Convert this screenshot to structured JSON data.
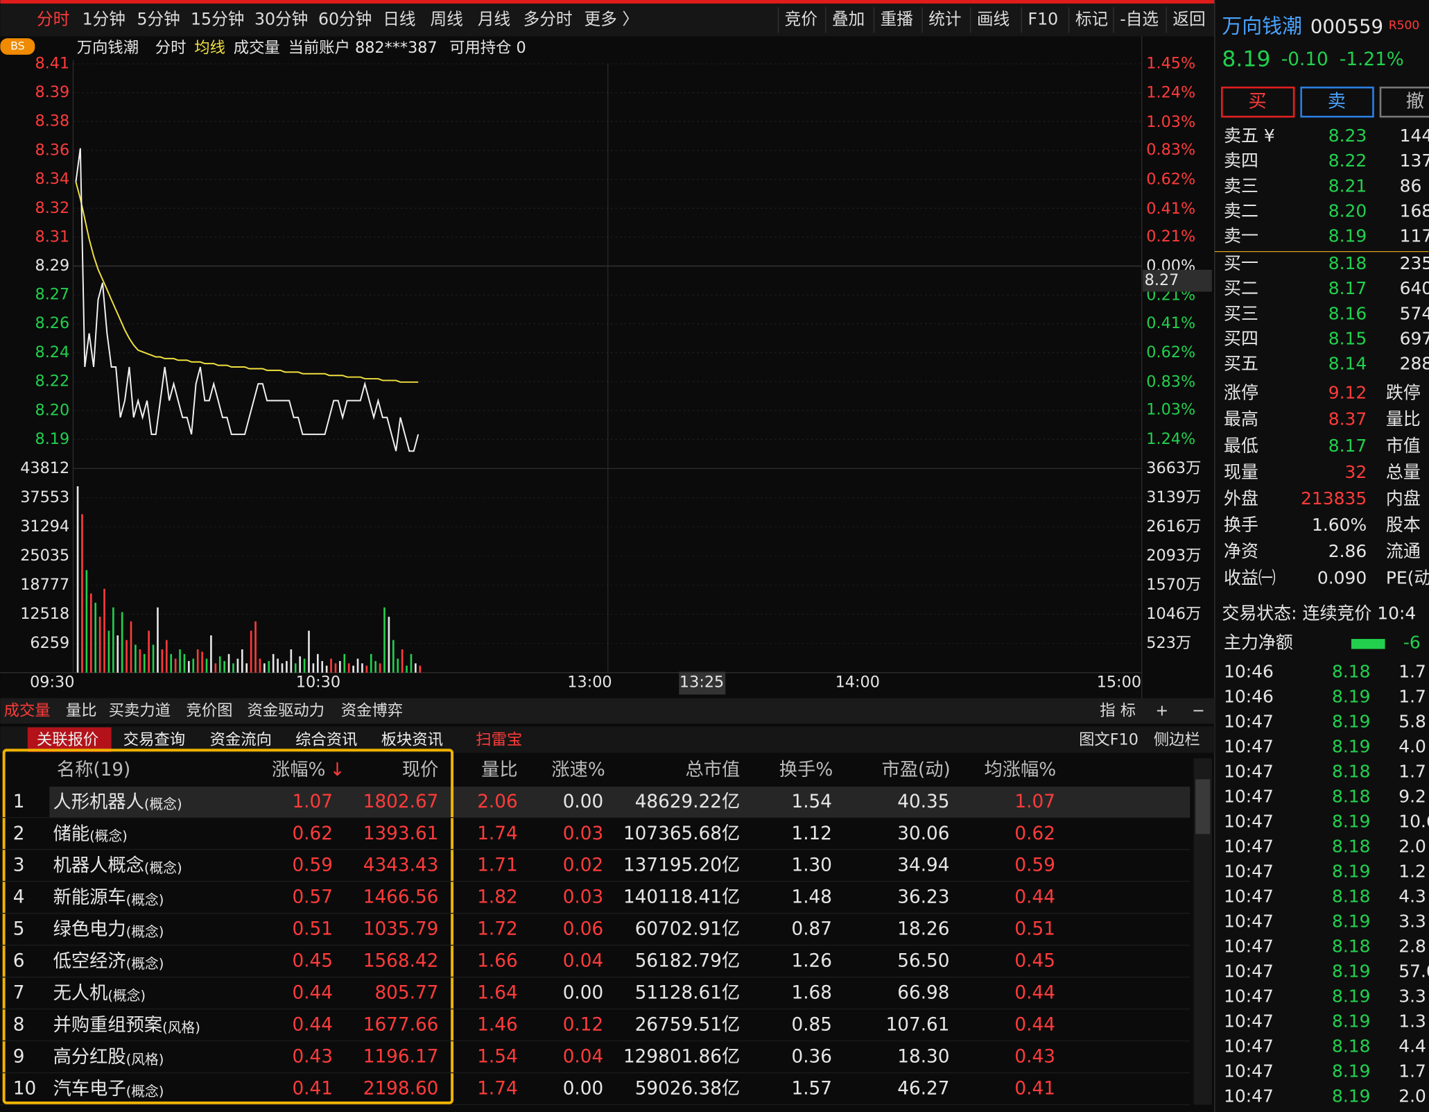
{
  "toolbar": {
    "left": [
      "分时",
      "1分钟",
      "5分钟",
      "15分钟",
      "30分钟",
      "60分钟",
      "日线",
      "周线",
      "月线",
      "多分时",
      "更多 〉"
    ],
    "right": [
      "竞价",
      "叠加",
      "重播",
      "统计",
      "画线",
      "F10",
      "标记",
      "-自选",
      "返回"
    ]
  },
  "chart_info": {
    "badge": "BS",
    "stock": "万向钱潮",
    "mode": "分时",
    "average": "均线",
    "volume": "成交量",
    "account": "当前账户 882***387",
    "holding": "可用持仓 0"
  },
  "intraday": {
    "price_ticks": [
      {
        "value": 8.4102,
        "label": "8.41"
      },
      {
        "value": 8.393,
        "label": "8.39"
      },
      {
        "value": 8.3759,
        "label": "8.38"
      },
      {
        "value": 8.3587,
        "label": "8.36"
      },
      {
        "value": 8.3415,
        "label": "8.34"
      },
      {
        "value": 8.3243,
        "label": "8.32"
      },
      {
        "value": 8.3072,
        "label": "8.31"
      },
      {
        "value": 8.29,
        "label": "8.29"
      },
      {
        "value": 8.2728,
        "label": "8.27"
      },
      {
        "value": 8.2557,
        "label": "8.26"
      },
      {
        "value": 8.2385,
        "label": "8.24"
      },
      {
        "value": 8.2213,
        "label": "8.22"
      },
      {
        "value": 8.2041,
        "label": "8.20"
      },
      {
        "value": 8.187,
        "label": "8.19"
      }
    ],
    "ylim": [
      8.187,
      8.4102
    ],
    "pct_ticks": [
      {
        "value": 1.45,
        "label": "1.45%"
      },
      {
        "value": 1.24,
        "label": "1.24%"
      },
      {
        "value": 1.03,
        "label": "1.03%"
      },
      {
        "value": 0.83,
        "label": "0.83%"
      },
      {
        "value": 0.62,
        "label": "0.62%"
      },
      {
        "value": 0.41,
        "label": "0.41%"
      },
      {
        "value": 0.21,
        "label": "0.21%"
      },
      {
        "value": 0,
        "label": "0.00%"
      },
      {
        "value": -0.21,
        "label": "0.21%"
      },
      {
        "value": -0.41,
        "label": "0.41%"
      },
      {
        "value": -0.62,
        "label": "0.62%"
      },
      {
        "value": -0.83,
        "label": "0.83%"
      },
      {
        "value": -1.03,
        "label": "1.03%"
      },
      {
        "value": -1.24,
        "label": "1.24%"
      }
    ],
    "y2lim": [
      -1.24,
      1.45
    ],
    "price": [
      8.34,
      8.36,
      8.23,
      8.25,
      8.23,
      8.27,
      8.28,
      8.25,
      8.23,
      8.23,
      8.2,
      8.21,
      8.23,
      8.2,
      8.21,
      8.2,
      8.21,
      8.19,
      8.19,
      8.21,
      8.23,
      8.21,
      8.22,
      8.21,
      8.2,
      8.2,
      8.19,
      8.22,
      8.23,
      8.21,
      8.21,
      8.22,
      8.21,
      8.2,
      8.2,
      8.19,
      8.19,
      8.19,
      8.19,
      8.2,
      8.21,
      8.22,
      8.22,
      8.21,
      8.21,
      8.21,
      8.21,
      8.21,
      8.21,
      8.2,
      8.2,
      8.19,
      8.19,
      8.19,
      8.19,
      8.19,
      8.19,
      8.2,
      8.21,
      8.21,
      8.2,
      8.21,
      8.21,
      8.21,
      8.21,
      8.22,
      8.21,
      8.2,
      8.21,
      8.2,
      8.2,
      8.19,
      8.18,
      8.2,
      8.19,
      8.18,
      8.18,
      8.19
    ],
    "average": [
      8.34,
      8.33,
      8.318,
      8.306,
      8.296,
      8.288,
      8.282,
      8.276,
      8.27,
      8.264,
      8.258,
      8.252,
      8.247,
      8.243,
      8.24,
      8.239,
      8.238,
      8.237,
      8.236,
      8.236,
      8.235,
      8.235,
      8.235,
      8.234,
      8.234,
      8.234,
      8.233,
      8.233,
      8.233,
      8.232,
      8.232,
      8.232,
      8.231,
      8.231,
      8.231,
      8.23,
      8.23,
      8.23,
      8.23,
      8.229,
      8.229,
      8.229,
      8.229,
      8.228,
      8.228,
      8.228,
      8.228,
      8.227,
      8.227,
      8.227,
      8.227,
      8.226,
      8.226,
      8.226,
      8.226,
      8.226,
      8.226,
      8.225,
      8.225,
      8.225,
      8.225,
      8.224,
      8.224,
      8.224,
      8.224,
      8.223,
      8.223,
      8.223,
      8.223,
      8.222,
      8.222,
      8.222,
      8.222,
      8.221,
      8.221,
      8.221,
      8.221,
      8.221
    ],
    "volume": [
      40000,
      34000,
      22000,
      17000,
      15000,
      12000,
      18000,
      9000,
      14000,
      8000,
      13000,
      7000,
      11000,
      6000,
      5000,
      4000,
      9000,
      6000,
      14000,
      5000,
      7000,
      4000,
      3000,
      5000,
      4000,
      2500,
      3000,
      5000,
      4500,
      3000,
      8000,
      2000,
      3500,
      2500,
      4000,
      2000,
      3000,
      5000,
      2000,
      9000,
      11000,
      3000,
      2000,
      2500,
      4000,
      3000,
      2000,
      2500,
      5000,
      2000,
      3500,
      3000,
      9000,
      2000,
      4000,
      2500,
      1500,
      3000,
      2000,
      2500,
      4000,
      2000,
      1500,
      3000,
      2000,
      1500,
      4000,
      2500,
      2000,
      14000,
      12000,
      7000,
      3000,
      5000,
      1500,
      4000,
      2000,
      1500
    ],
    "vlim": [
      0,
      43812
    ],
    "volume_ticks": [
      43812,
      37553,
      31294,
      25035,
      18777,
      12518,
      6259
    ],
    "amount_ticks": [
      {
        "value": 3663,
        "label": "3663万"
      },
      {
        "value": 3139,
        "label": "3139万"
      },
      {
        "value": 2616,
        "label": "2616万"
      },
      {
        "value": 2093,
        "label": "2093万"
      },
      {
        "value": 1570,
        "label": "1570万"
      },
      {
        "value": 1046,
        "label": "1046万"
      },
      {
        "value": 523,
        "label": "523万"
      }
    ],
    "alim": [
      0,
      3663
    ],
    "time_labels": [
      "09:30",
      "10:30",
      "13:00",
      "14:00",
      "15:00"
    ],
    "cursor_time": "13:25",
    "cursor_price": "8.27"
  },
  "bottom_tabs": {
    "left": [
      "成交量",
      "量比",
      "买卖力道",
      "竞价图",
      "资金驱动力",
      "资金博弈"
    ],
    "right": [
      "指 标",
      "+",
      "−"
    ]
  },
  "sub_tabs": {
    "left": [
      "关联报价",
      "交易查询",
      "资金流向",
      "综合资讯",
      "板块资讯",
      "扫雷宝"
    ],
    "right": [
      "图文F10",
      "侧边栏"
    ]
  },
  "table": {
    "header": [
      "名称(19)",
      "涨幅%",
      "现价",
      "量比",
      "涨速%",
      "总市值",
      "换手%",
      "市盈(动)",
      "均涨幅%"
    ],
    "sort_arrow": "↓",
    "rows": [
      [
        "1",
        "人形机器人",
        "(概念)",
        "1.07",
        "1802.67",
        "2.06",
        "0.00",
        "48629.22亿",
        "1.54",
        "40.35",
        "1.07"
      ],
      [
        "2",
        "储能",
        "(概念)",
        "0.62",
        "1393.61",
        "1.74",
        "0.03",
        "107365.68亿",
        "1.12",
        "30.06",
        "0.62"
      ],
      [
        "3",
        "机器人概念",
        "(概念)",
        "0.59",
        "4343.43",
        "1.71",
        "0.02",
        "137195.20亿",
        "1.30",
        "34.94",
        "0.59"
      ],
      [
        "4",
        "新能源车",
        "(概念)",
        "0.57",
        "1466.56",
        "1.82",
        "0.03",
        "140118.41亿",
        "1.48",
        "36.23",
        "0.44"
      ],
      [
        "5",
        "绿色电力",
        "(概念)",
        "0.51",
        "1035.79",
        "1.72",
        "0.06",
        "60702.91亿",
        "0.87",
        "18.26",
        "0.51"
      ],
      [
        "6",
        "低空经济",
        "(概念)",
        "0.45",
        "1568.42",
        "1.66",
        "0.04",
        "56182.79亿",
        "1.26",
        "56.50",
        "0.45"
      ],
      [
        "7",
        "无人机",
        "(概念)",
        "0.44",
        "805.77",
        "1.64",
        "0.00",
        "51128.61亿",
        "1.68",
        "66.98",
        "0.44"
      ],
      [
        "8",
        "并购重组预案",
        "(风格)",
        "0.44",
        "1677.66",
        "1.46",
        "0.12",
        "26759.51亿",
        "0.85",
        "107.61",
        "0.44"
      ],
      [
        "9",
        "高分红股",
        "(风格)",
        "0.43",
        "1196.17",
        "1.54",
        "0.04",
        "129801.86亿",
        "0.36",
        "18.30",
        "0.43"
      ],
      [
        "10",
        "汽车电子",
        "(概念)",
        "0.41",
        "2198.60",
        "1.74",
        "0.00",
        "59026.38亿",
        "1.57",
        "46.27",
        "0.41"
      ]
    ]
  },
  "quote": {
    "name": "万向钱潮",
    "code": "000559",
    "tag": "R500",
    "price": "8.19",
    "change": "-0.10",
    "pct": "-1.21%",
    "buttons": [
      "买",
      "卖",
      "撤"
    ],
    "sells": [
      [
        "卖五 ¥",
        "8.23",
        "144"
      ],
      [
        "卖四",
        "8.22",
        "137"
      ],
      [
        "卖三",
        "8.21",
        "86"
      ],
      [
        "卖二",
        "8.20",
        "168"
      ],
      [
        "卖一",
        "8.19",
        "117"
      ]
    ],
    "buys": [
      [
        "买一",
        "8.18",
        "235"
      ],
      [
        "买二",
        "8.17",
        "640"
      ],
      [
        "买三",
        "8.16",
        "574"
      ],
      [
        "买四",
        "8.15",
        "697"
      ],
      [
        "买五",
        "8.14",
        "288"
      ]
    ],
    "stats": [
      {
        "label": "涨停",
        "value": "9.12",
        "color": "#ff3b3b",
        "right": "跌停"
      },
      {
        "label": "最高",
        "value": "8.37",
        "color": "#ff3b3b",
        "right": "量比"
      },
      {
        "label": "最低",
        "value": "8.17",
        "color": "#22d04e",
        "right": "市值"
      },
      {
        "label": "现量",
        "value": "32",
        "color": "#ff3b3b",
        "right": "总量"
      },
      {
        "label": "外盘",
        "value": "213835",
        "color": "#ff3b3b",
        "right": "内盘"
      },
      {
        "label": "换手",
        "value": "1.60%",
        "color": "#e6e6e6",
        "right": "股本"
      },
      {
        "label": "净资",
        "value": "2.86",
        "color": "#e6e6e6",
        "right": "流通"
      },
      {
        "label": "收益㈠",
        "value": "0.090",
        "color": "#e6e6e6",
        "right": "PE(动"
      }
    ],
    "status": "交易状态: 连续竞价 10:4",
    "main_net": "主力净额",
    "main_net_value": "-6",
    "ticks": [
      [
        "10:46",
        "8.18",
        "1.7"
      ],
      [
        "10:46",
        "8.19",
        "1.7"
      ],
      [
        "10:47",
        "8.19",
        "5.8"
      ],
      [
        "10:47",
        "8.19",
        "4.0"
      ],
      [
        "10:47",
        "8.18",
        "1.7"
      ],
      [
        "10:47",
        "8.18",
        "9.2"
      ],
      [
        "10:47",
        "8.19",
        "10.6"
      ],
      [
        "10:47",
        "8.18",
        "2.0"
      ],
      [
        "10:47",
        "8.19",
        "1.2"
      ],
      [
        "10:47",
        "8.18",
        "4.3"
      ],
      [
        "10:47",
        "8.19",
        "3.3"
      ],
      [
        "10:47",
        "8.18",
        "2.8"
      ],
      [
        "10:47",
        "8.19",
        "57.0"
      ],
      [
        "10:47",
        "8.19",
        "3.3"
      ],
      [
        "10:47",
        "8.19",
        "1.3"
      ],
      [
        "10:47",
        "8.18",
        "4.4"
      ],
      [
        "10:47",
        "8.19",
        "1.7"
      ],
      [
        "10:47",
        "8.19",
        "2.0"
      ]
    ]
  }
}
